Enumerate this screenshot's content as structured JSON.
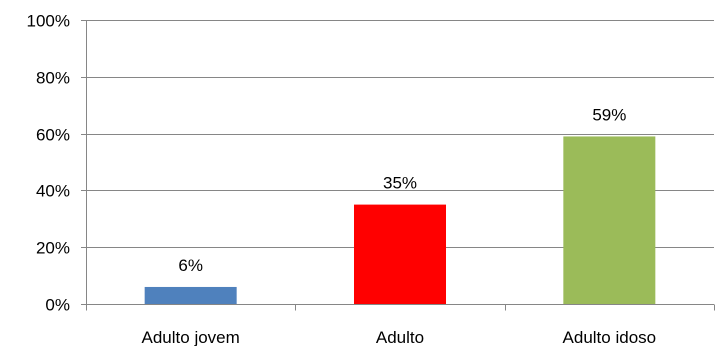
{
  "chart_data": {
    "type": "bar",
    "title": "",
    "xlabel": "",
    "ylabel": "",
    "categories": [
      "Adulto jovem",
      "Adulto",
      "Adulto idoso"
    ],
    "values": [
      6,
      35,
      59
    ],
    "value_labels": [
      "6%",
      "35%",
      "59%"
    ],
    "bar_colors": [
      "#4f81bd",
      "#ff0000",
      "#9bbb59"
    ],
    "ylim": [
      0,
      100
    ],
    "y_ticks": [
      0,
      20,
      40,
      60,
      80,
      100
    ],
    "y_tick_labels": [
      "0%",
      "20%",
      "40%",
      "60%",
      "80%",
      "100%"
    ],
    "grid": true,
    "gridline_color": "#868686",
    "legend": "none"
  }
}
